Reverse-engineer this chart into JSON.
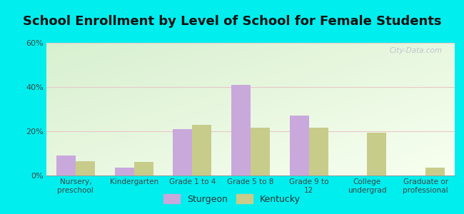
{
  "title": "School Enrollment by Level of School for Female Students",
  "categories": [
    "Nursery,\npreschool",
    "Kindergarten",
    "Grade 1 to 4",
    "Grade 5 to 8",
    "Grade 9 to\n12",
    "College\nundergrad",
    "Graduate or\nprofessional"
  ],
  "sturgeon": [
    9,
    3.5,
    21,
    41,
    27,
    0,
    0
  ],
  "kentucky": [
    6.5,
    6,
    23,
    21.5,
    21.5,
    19.5,
    3.5
  ],
  "bar_color_sturgeon": "#c9a8dc",
  "bar_color_kentucky": "#c8cc8a",
  "background_color": "#00eeee",
  "ylim": [
    0,
    60
  ],
  "yticks": [
    0,
    20,
    40,
    60
  ],
  "ytick_labels": [
    "0%",
    "20%",
    "40%",
    "60%"
  ],
  "title_fontsize": 13,
  "legend_labels": [
    "Sturgeon",
    "Kentucky"
  ],
  "watermark": "City-Data.com"
}
